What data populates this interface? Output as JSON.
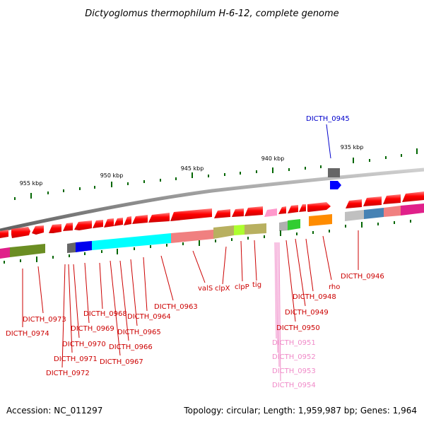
{
  "title": "Dictyoglomus thermophilum H-6-12, complete genome",
  "footer": {
    "accession": "Accession: NC_011297",
    "topology": "Topology: circular; Length: 1,959,987 bp; Genes: 1,964"
  },
  "ticks": [
    {
      "label": "955 kbp"
    },
    {
      "label": "950 kbp"
    },
    {
      "label": "945 kbp"
    },
    {
      "label": "940 kbp"
    },
    {
      "label": "935 kbp"
    }
  ],
  "gene_labels": [
    {
      "text": "DICTH_0945",
      "color": "#0000cc"
    },
    {
      "text": "DICTH_0946",
      "color": "#cc0000"
    },
    {
      "text": "rho",
      "color": "#cc0000"
    },
    {
      "text": "DICTH_0948",
      "color": "#cc0000"
    },
    {
      "text": "DICTH_0949",
      "color": "#cc0000"
    },
    {
      "text": "DICTH_0950",
      "color": "#cc0000"
    },
    {
      "text": "DICTH_0951",
      "color": "#f08ac8"
    },
    {
      "text": "DICTH_0952",
      "color": "#f08ac8"
    },
    {
      "text": "DICTH_0953",
      "color": "#f08ac8"
    },
    {
      "text": "DICTH_0954",
      "color": "#f08ac8"
    },
    {
      "text": "tig",
      "color": "#cc0000"
    },
    {
      "text": "clpP",
      "color": "#cc0000"
    },
    {
      "text": "clpX",
      "color": "#cc0000"
    },
    {
      "text": "valS",
      "color": "#cc0000"
    },
    {
      "text": "DICTH_0963",
      "color": "#cc0000"
    },
    {
      "text": "DICTH_0964",
      "color": "#cc0000"
    },
    {
      "text": "DICTH_0965",
      "color": "#cc0000"
    },
    {
      "text": "DICTH_0966",
      "color": "#cc0000"
    },
    {
      "text": "DICTH_0967",
      "color": "#cc0000"
    },
    {
      "text": "DICTH_0968",
      "color": "#cc0000"
    },
    {
      "text": "DICTH_0969",
      "color": "#cc0000"
    },
    {
      "text": "DICTH_0970",
      "color": "#cc0000"
    },
    {
      "text": "DICTH_0971",
      "color": "#cc0000"
    },
    {
      "text": "DICTH_0972",
      "color": "#cc0000"
    },
    {
      "text": "DICTH_0973",
      "color": "#cc0000"
    },
    {
      "text": "DICTH_0974",
      "color": "#cc0000"
    }
  ],
  "colors": {
    "forward_gene": "#ff0000",
    "reverse_gene_blue": "#0000ff",
    "backbone": "#888888",
    "tick": "#006600"
  }
}
